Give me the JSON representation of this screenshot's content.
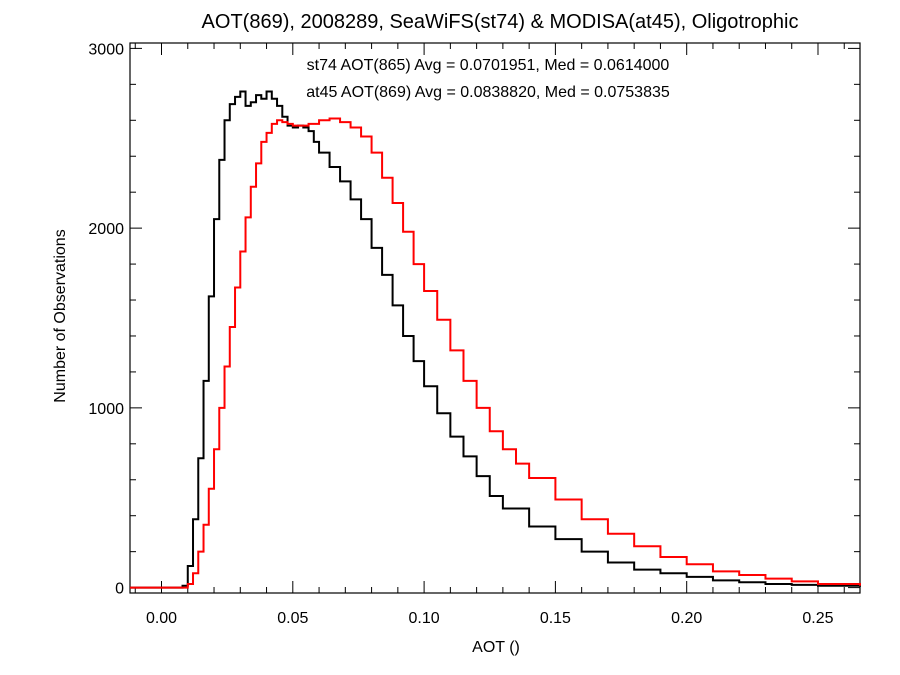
{
  "chart_data": {
    "type": "line",
    "title": "AOT(869), 2008289, SeaWiFS(st74) & MODISA(at45), Oligotrophic",
    "xlabel": "AOT ()",
    "ylabel": "Number of Observations",
    "xlim": [
      -0.012,
      0.266
    ],
    "ylim": [
      -30,
      3030
    ],
    "xticks": [
      0.0,
      0.05,
      0.1,
      0.15,
      0.2,
      0.25
    ],
    "xtick_labels": [
      "0.00",
      "0.05",
      "0.10",
      "0.15",
      "0.20",
      "0.25"
    ],
    "yticks": [
      0,
      1000,
      2000,
      3000
    ],
    "ytick_labels": [
      "0",
      "1000",
      "2000",
      "3000"
    ],
    "grid": false,
    "step_style": "histogram",
    "annotations": [
      {
        "text": "st74 AOT(865) Avg = 0.0701951, Med = 0.0614000",
        "color": "#000000"
      },
      {
        "text": "at45 AOT(869) Avg = 0.0838820, Med = 0.0753835",
        "color": "#ff0000"
      }
    ],
    "series": [
      {
        "color": "#000000",
        "x": [
          -0.012,
          0.0,
          0.008,
          0.01,
          0.012,
          0.014,
          0.016,
          0.018,
          0.02,
          0.022,
          0.024,
          0.026,
          0.028,
          0.03,
          0.032,
          0.034,
          0.036,
          0.038,
          0.04,
          0.042,
          0.044,
          0.046,
          0.048,
          0.05,
          0.052,
          0.054,
          0.056,
          0.058,
          0.06,
          0.064,
          0.068,
          0.072,
          0.076,
          0.08,
          0.084,
          0.088,
          0.092,
          0.096,
          0.1,
          0.105,
          0.11,
          0.115,
          0.12,
          0.125,
          0.13,
          0.14,
          0.15,
          0.16,
          0.17,
          0.18,
          0.19,
          0.2,
          0.21,
          0.22,
          0.23,
          0.24,
          0.25,
          0.266
        ],
        "y": [
          0,
          0,
          10,
          120,
          380,
          720,
          1150,
          1620,
          2050,
          2380,
          2600,
          2690,
          2730,
          2760,
          2680,
          2700,
          2740,
          2720,
          2760,
          2720,
          2680,
          2620,
          2570,
          2560,
          2570,
          2560,
          2540,
          2480,
          2420,
          2340,
          2260,
          2160,
          2050,
          1890,
          1740,
          1570,
          1400,
          1260,
          1120,
          970,
          840,
          730,
          620,
          510,
          440,
          340,
          270,
          200,
          140,
          100,
          80,
          60,
          40,
          30,
          20,
          15,
          10,
          5
        ]
      },
      {
        "color": "#ff0000",
        "x": [
          -0.012,
          0.0,
          0.01,
          0.012,
          0.014,
          0.016,
          0.018,
          0.02,
          0.022,
          0.024,
          0.026,
          0.028,
          0.03,
          0.032,
          0.034,
          0.036,
          0.038,
          0.04,
          0.042,
          0.044,
          0.046,
          0.048,
          0.05,
          0.052,
          0.056,
          0.06,
          0.064,
          0.068,
          0.072,
          0.076,
          0.08,
          0.084,
          0.088,
          0.092,
          0.096,
          0.1,
          0.105,
          0.11,
          0.115,
          0.12,
          0.125,
          0.13,
          0.135,
          0.14,
          0.15,
          0.16,
          0.17,
          0.18,
          0.19,
          0.2,
          0.21,
          0.22,
          0.23,
          0.24,
          0.25,
          0.266
        ],
        "y": [
          0,
          0,
          20,
          80,
          200,
          350,
          550,
          770,
          1000,
          1230,
          1450,
          1670,
          1870,
          2060,
          2230,
          2360,
          2480,
          2530,
          2580,
          2600,
          2590,
          2580,
          2570,
          2570,
          2580,
          2600,
          2610,
          2590,
          2560,
          2510,
          2420,
          2280,
          2140,
          1980,
          1800,
          1650,
          1490,
          1320,
          1150,
          1000,
          870,
          770,
          690,
          610,
          490,
          380,
          300,
          230,
          170,
          130,
          90,
          70,
          50,
          35,
          20,
          10
        ]
      }
    ]
  }
}
